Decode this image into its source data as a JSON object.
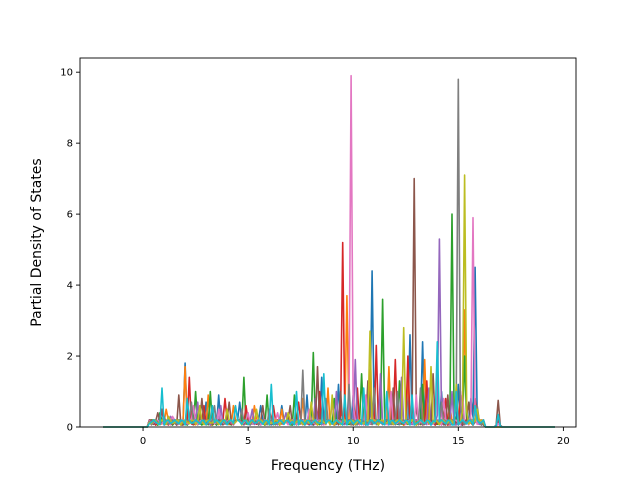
{
  "chart_data": {
    "type": "line",
    "title": "",
    "xlabel": "Frequency (THz)",
    "ylabel": "Partial Density of States",
    "xlim": [
      -3.0,
      20.6
    ],
    "ylim": [
      0,
      10.4
    ],
    "xticks": [
      0,
      5,
      10,
      15,
      20
    ],
    "yticks": [
      0,
      2,
      4,
      6,
      8,
      10
    ],
    "grid": false,
    "legend": "none",
    "x_range_of_curves": [
      -1.9,
      19.6
    ],
    "series_colors": [
      "#1f77b4",
      "#ff7f0e",
      "#2ca02c",
      "#d62728",
      "#9467bd",
      "#8c564b",
      "#e377c2",
      "#7f7f7f",
      "#bcbd22",
      "#17becf"
    ],
    "series": [
      {
        "color": "#1f77b4",
        "peaks": [
          [
            0.9,
            0.5
          ],
          [
            2.0,
            1.8
          ],
          [
            3.0,
            0.7
          ],
          [
            3.6,
            0.9
          ],
          [
            4.6,
            0.7
          ],
          [
            5.6,
            0.6
          ],
          [
            6.6,
            0.6
          ],
          [
            7.8,
            0.9
          ],
          [
            8.5,
            1.4
          ],
          [
            9.3,
            1.2
          ],
          [
            10.0,
            0.9
          ],
          [
            10.9,
            4.4
          ],
          [
            11.7,
            1.5
          ],
          [
            12.7,
            2.6
          ],
          [
            13.3,
            2.4
          ],
          [
            14.2,
            1.0
          ],
          [
            15.0,
            1.2
          ],
          [
            15.6,
            0.8
          ],
          [
            15.8,
            4.5
          ],
          [
            16.9,
            0.3
          ]
        ]
      },
      {
        "color": "#ff7f0e",
        "peaks": [
          [
            1.1,
            0.5
          ],
          [
            2.0,
            1.7
          ],
          [
            3.1,
            0.9
          ],
          [
            4.3,
            0.6
          ],
          [
            5.3,
            0.6
          ],
          [
            6.6,
            0.5
          ],
          [
            7.6,
            0.8
          ],
          [
            8.8,
            1.1
          ],
          [
            9.7,
            3.7
          ],
          [
            10.8,
            1.6
          ],
          [
            11.7,
            1.7
          ],
          [
            12.6,
            1.5
          ],
          [
            13.4,
            1.9
          ],
          [
            14.6,
            0.6
          ],
          [
            15.3,
            3.3
          ],
          [
            15.8,
            0.8
          ],
          [
            16.9,
            0.2
          ]
        ]
      },
      {
        "color": "#2ca02c",
        "peaks": [
          [
            0.8,
            0.4
          ],
          [
            2.5,
            1.0
          ],
          [
            3.2,
            1.0
          ],
          [
            4.8,
            1.4
          ],
          [
            5.9,
            0.9
          ],
          [
            7.2,
            0.9
          ],
          [
            8.1,
            2.1
          ],
          [
            9.1,
            0.8
          ],
          [
            10.4,
            1.5
          ],
          [
            11.4,
            3.6
          ],
          [
            12.2,
            1.3
          ],
          [
            13.3,
            1.2
          ],
          [
            14.7,
            6.0
          ],
          [
            15.3,
            2.0
          ],
          [
            16.9,
            0.2
          ]
        ]
      },
      {
        "color": "#d62728",
        "peaks": [
          [
            0.9,
            0.5
          ],
          [
            2.2,
            1.4
          ],
          [
            2.9,
            0.6
          ],
          [
            3.9,
            0.8
          ],
          [
            4.9,
            0.6
          ],
          [
            6.2,
            0.6
          ],
          [
            7.4,
            0.7
          ],
          [
            8.4,
            1.0
          ],
          [
            9.5,
            5.2
          ],
          [
            10.2,
            1.1
          ],
          [
            11.1,
            2.3
          ],
          [
            12.0,
            1.9
          ],
          [
            12.6,
            2.0
          ],
          [
            13.5,
            1.3
          ],
          [
            14.4,
            0.8
          ],
          [
            15.1,
            0.9
          ],
          [
            15.8,
            0.8
          ],
          [
            16.9,
            0.2
          ]
        ]
      },
      {
        "color": "#9467bd",
        "peaks": [
          [
            1.3,
            0.3
          ],
          [
            2.6,
            0.7
          ],
          [
            3.7,
            0.6
          ],
          [
            5.2,
            0.5
          ],
          [
            6.8,
            0.4
          ],
          [
            8.2,
            0.8
          ],
          [
            9.2,
            1.0
          ],
          [
            10.1,
            1.9
          ],
          [
            11.3,
            1.5
          ],
          [
            12.3,
            1.4
          ],
          [
            13.6,
            1.1
          ],
          [
            14.1,
            5.3
          ],
          [
            14.7,
            1.0
          ],
          [
            15.8,
            0.6
          ]
        ]
      },
      {
        "color": "#8c564b",
        "peaks": [
          [
            0.7,
            0.4
          ],
          [
            1.7,
            0.9
          ],
          [
            2.8,
            0.8
          ],
          [
            4.1,
            0.7
          ],
          [
            5.7,
            0.6
          ],
          [
            7.0,
            0.6
          ],
          [
            8.3,
            1.7
          ],
          [
            9.4,
            1.0
          ],
          [
            10.7,
            1.3
          ],
          [
            11.9,
            1.1
          ],
          [
            12.9,
            7.0
          ],
          [
            13.8,
            1.5
          ],
          [
            14.5,
            0.9
          ],
          [
            15.5,
            0.7
          ],
          [
            16.9,
            0.75
          ]
        ]
      },
      {
        "color": "#e377c2",
        "peaks": [
          [
            1.4,
            0.3
          ],
          [
            2.4,
            0.6
          ],
          [
            3.6,
            0.5
          ],
          [
            5.0,
            0.4
          ],
          [
            6.4,
            0.4
          ],
          [
            7.9,
            0.5
          ],
          [
            9.0,
            0.7
          ],
          [
            9.9,
            9.9
          ],
          [
            10.6,
            0.9
          ],
          [
            11.8,
            1.0
          ],
          [
            13.0,
            0.9
          ],
          [
            14.3,
            0.8
          ],
          [
            15.2,
            1.0
          ],
          [
            15.7,
            5.9
          ],
          [
            16.9,
            0.1
          ]
        ]
      },
      {
        "color": "#7f7f7f",
        "peaks": [
          [
            1.0,
            0.3
          ],
          [
            2.3,
            0.7
          ],
          [
            3.4,
            0.6
          ],
          [
            4.7,
            0.5
          ],
          [
            6.0,
            0.5
          ],
          [
            7.6,
            1.6
          ],
          [
            8.7,
            0.8
          ],
          [
            9.8,
            1.2
          ],
          [
            11.0,
            1.1
          ],
          [
            12.1,
            1.0
          ],
          [
            13.2,
            1.1
          ],
          [
            14.2,
            0.7
          ],
          [
            15.0,
            9.8
          ],
          [
            15.9,
            0.6
          ]
        ]
      },
      {
        "color": "#bcbd22",
        "peaks": [
          [
            1.2,
            0.3
          ],
          [
            2.7,
            0.6
          ],
          [
            4.0,
            0.5
          ],
          [
            5.4,
            0.5
          ],
          [
            6.9,
            0.4
          ],
          [
            8.0,
            0.7
          ],
          [
            9.0,
            0.9
          ],
          [
            10.8,
            2.7
          ],
          [
            12.4,
            2.8
          ],
          [
            13.7,
            1.7
          ],
          [
            14.9,
            1.2
          ],
          [
            15.3,
            7.1
          ],
          [
            15.9,
            0.5
          ]
        ]
      },
      {
        "color": "#17becf",
        "peaks": [
          [
            0.9,
            1.1
          ],
          [
            2.1,
            0.8
          ],
          [
            3.3,
            0.6
          ],
          [
            4.4,
            0.6
          ],
          [
            6.1,
            1.2
          ],
          [
            7.3,
            1.0
          ],
          [
            8.6,
            1.5
          ],
          [
            9.6,
            0.9
          ],
          [
            10.5,
            1.1
          ],
          [
            11.6,
            1.0
          ],
          [
            12.8,
            0.9
          ],
          [
            14.0,
            2.4
          ],
          [
            14.9,
            1.0
          ],
          [
            15.8,
            0.6
          ],
          [
            16.9,
            0.35
          ]
        ]
      }
    ]
  }
}
